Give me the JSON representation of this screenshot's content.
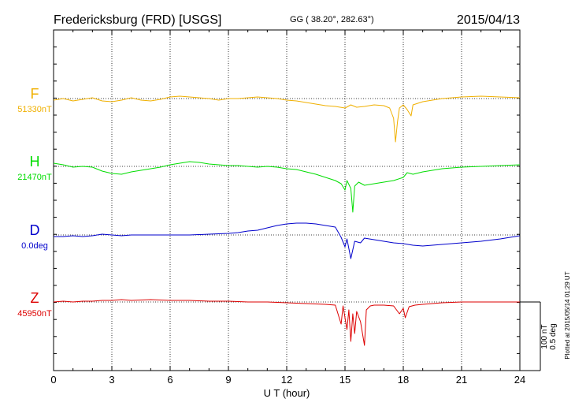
{
  "header": {
    "station": "Fredericksburg (FRD)  [USGS]",
    "coords": "GG ( 38.20°, 282.63°)",
    "date": "2015/04/13"
  },
  "footer": {
    "plotted": "Plotted at 2015/05/14 01:29 UT"
  },
  "chart_data": {
    "type": "line",
    "xlabel": "U T (hour)",
    "xlim": [
      0,
      24
    ],
    "xticks": [
      "0",
      "3",
      "6",
      "9",
      "12",
      "15",
      "18",
      "21",
      "24"
    ],
    "scale_bar": {
      "nT": "100 nT",
      "deg": "0.5 deg"
    },
    "colors": {
      "F": "#f0b000",
      "H": "#00dd00",
      "D": "#0000cc",
      "Z": "#dd0000"
    },
    "series": [
      {
        "name": "F",
        "baseline": "51330nT",
        "color": "#f0b000",
        "points": [
          [
            0,
            -2
          ],
          [
            0.5,
            0
          ],
          [
            1,
            -3
          ],
          [
            1.5,
            -1
          ],
          [
            2,
            1
          ],
          [
            2.5,
            -3
          ],
          [
            3,
            -4
          ],
          [
            3.5,
            -2
          ],
          [
            4,
            1
          ],
          [
            4.5,
            -2
          ],
          [
            5,
            -3
          ],
          [
            5.5,
            -1
          ],
          [
            6,
            2
          ],
          [
            6.5,
            3
          ],
          [
            7,
            2
          ],
          [
            7.5,
            1
          ],
          [
            8,
            0
          ],
          [
            8.5,
            -2
          ],
          [
            9,
            0
          ],
          [
            9.5,
            0
          ],
          [
            10,
            1
          ],
          [
            10.5,
            2
          ],
          [
            11,
            1
          ],
          [
            11.5,
            0
          ],
          [
            12,
            -2
          ],
          [
            12.5,
            -3
          ],
          [
            13,
            -5
          ],
          [
            13.5,
            -7
          ],
          [
            14,
            -9
          ],
          [
            14.5,
            -10
          ],
          [
            15,
            -12
          ],
          [
            15.3,
            -8
          ],
          [
            15.6,
            -11
          ],
          [
            16,
            -10
          ],
          [
            16.5,
            -8
          ],
          [
            17,
            -9
          ],
          [
            17.3,
            -12
          ],
          [
            17.5,
            -25
          ],
          [
            17.6,
            -55
          ],
          [
            17.7,
            -30
          ],
          [
            17.8,
            -12
          ],
          [
            18,
            -8
          ],
          [
            18.2,
            -14
          ],
          [
            18.4,
            -22
          ],
          [
            18.5,
            -8
          ],
          [
            19,
            -4
          ],
          [
            19.5,
            -2
          ],
          [
            20,
            0
          ],
          [
            20.5,
            1
          ],
          [
            21,
            2
          ],
          [
            22,
            3
          ],
          [
            23,
            2
          ],
          [
            24,
            1
          ]
        ]
      },
      {
        "name": "H",
        "baseline": "21470nT",
        "color": "#00dd00",
        "points": [
          [
            0,
            4
          ],
          [
            0.5,
            2
          ],
          [
            1,
            -1
          ],
          [
            1.5,
            0
          ],
          [
            2,
            -1
          ],
          [
            2.5,
            -6
          ],
          [
            3,
            -9
          ],
          [
            3.5,
            -10
          ],
          [
            4,
            -7
          ],
          [
            4.5,
            -5
          ],
          [
            5,
            -3
          ],
          [
            5.5,
            -1
          ],
          [
            6,
            2
          ],
          [
            6.5,
            4
          ],
          [
            7,
            6
          ],
          [
            7.5,
            5
          ],
          [
            8,
            3
          ],
          [
            8.5,
            2
          ],
          [
            9,
            1
          ],
          [
            9.5,
            1
          ],
          [
            10,
            0
          ],
          [
            10.5,
            -1
          ],
          [
            11,
            0
          ],
          [
            11.5,
            -1
          ],
          [
            12,
            -3
          ],
          [
            12.5,
            -4
          ],
          [
            13,
            -7
          ],
          [
            13.5,
            -10
          ],
          [
            14,
            -14
          ],
          [
            14.5,
            -18
          ],
          [
            14.8,
            -22
          ],
          [
            15,
            -30
          ],
          [
            15.1,
            -18
          ],
          [
            15.3,
            -28
          ],
          [
            15.4,
            -58
          ],
          [
            15.5,
            -25
          ],
          [
            15.7,
            -20
          ],
          [
            16,
            -24
          ],
          [
            16.5,
            -22
          ],
          [
            17,
            -20
          ],
          [
            17.5,
            -18
          ],
          [
            18,
            -14
          ],
          [
            18.2,
            -8
          ],
          [
            18.5,
            -10
          ],
          [
            19,
            -7
          ],
          [
            19.5,
            -5
          ],
          [
            20,
            -3
          ],
          [
            21,
            -1
          ],
          [
            22,
            0
          ],
          [
            23,
            1
          ],
          [
            24,
            2
          ]
        ]
      },
      {
        "name": "D",
        "baseline": "0.0deg",
        "color": "#0000cc",
        "points": [
          [
            0,
            -2
          ],
          [
            0.5,
            -2
          ],
          [
            1,
            -1
          ],
          [
            1.5,
            -2
          ],
          [
            2,
            -1
          ],
          [
            2.5,
            1
          ],
          [
            3,
            0
          ],
          [
            3.5,
            -1
          ],
          [
            4,
            0
          ],
          [
            5,
            0
          ],
          [
            6,
            0
          ],
          [
            7,
            0
          ],
          [
            8,
            1
          ],
          [
            9,
            2
          ],
          [
            9.5,
            3
          ],
          [
            10,
            5
          ],
          [
            10.5,
            6
          ],
          [
            11,
            9
          ],
          [
            11.5,
            12
          ],
          [
            12,
            14
          ],
          [
            12.5,
            15
          ],
          [
            13,
            15
          ],
          [
            13.5,
            14
          ],
          [
            14,
            12
          ],
          [
            14.5,
            10
          ],
          [
            14.8,
            -3
          ],
          [
            15,
            -15
          ],
          [
            15.1,
            -5
          ],
          [
            15.3,
            -30
          ],
          [
            15.5,
            -8
          ],
          [
            15.8,
            -10
          ],
          [
            16,
            -4
          ],
          [
            16.5,
            -6
          ],
          [
            17,
            -8
          ],
          [
            17.5,
            -10
          ],
          [
            18,
            -11
          ],
          [
            18.5,
            -13
          ],
          [
            19,
            -14
          ],
          [
            19.5,
            -13
          ],
          [
            20,
            -12
          ],
          [
            21,
            -10
          ],
          [
            22,
            -8
          ],
          [
            23,
            -5
          ],
          [
            24,
            -1
          ]
        ]
      },
      {
        "name": "Z",
        "baseline": "45950nT",
        "color": "#dd0000",
        "points": [
          [
            0,
            0
          ],
          [
            0.5,
            1
          ],
          [
            1,
            0
          ],
          [
            1.5,
            1
          ],
          [
            2,
            1
          ],
          [
            2.5,
            2
          ],
          [
            3,
            2
          ],
          [
            3.5,
            3
          ],
          [
            4,
            2
          ],
          [
            5,
            3
          ],
          [
            6,
            2
          ],
          [
            7,
            2
          ],
          [
            8,
            1
          ],
          [
            9,
            1
          ],
          [
            10,
            0
          ],
          [
            11,
            0
          ],
          [
            12,
            -1
          ],
          [
            13,
            -2
          ],
          [
            14,
            -3
          ],
          [
            14.5,
            -4
          ],
          [
            14.8,
            -28
          ],
          [
            14.9,
            -5
          ],
          [
            15.1,
            -35
          ],
          [
            15.2,
            -10
          ],
          [
            15.3,
            -50
          ],
          [
            15.4,
            -15
          ],
          [
            15.5,
            -40
          ],
          [
            15.6,
            -12
          ],
          [
            15.8,
            -25
          ],
          [
            16,
            -55
          ],
          [
            16.1,
            -10
          ],
          [
            16.3,
            -5
          ],
          [
            16.5,
            -4
          ],
          [
            17,
            -4
          ],
          [
            17.5,
            -5
          ],
          [
            17.8,
            -15
          ],
          [
            18,
            -8
          ],
          [
            18.1,
            -20
          ],
          [
            18.3,
            -6
          ],
          [
            18.6,
            -4
          ],
          [
            19,
            -3
          ],
          [
            19.5,
            -2
          ],
          [
            20,
            -1
          ],
          [
            21,
            0
          ],
          [
            22,
            0
          ],
          [
            23,
            0
          ],
          [
            24,
            0
          ]
        ]
      }
    ]
  }
}
